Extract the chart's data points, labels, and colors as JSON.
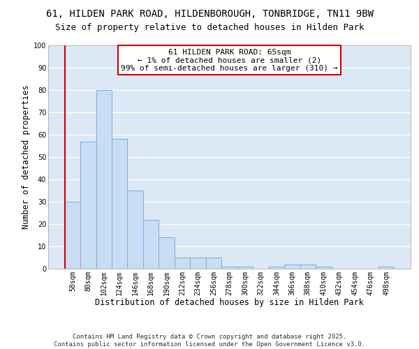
{
  "title_line1": "61, HILDEN PARK ROAD, HILDENBOROUGH, TONBRIDGE, TN11 9BW",
  "title_line2": "Size of property relative to detached houses in Hilden Park",
  "xlabel": "Distribution of detached houses by size in Hilden Park",
  "ylabel": "Number of detached properties",
  "categories": [
    "58sqm",
    "80sqm",
    "102sqm",
    "124sqm",
    "146sqm",
    "168sqm",
    "190sqm",
    "212sqm",
    "234sqm",
    "256sqm",
    "278sqm",
    "300sqm",
    "322sqm",
    "344sqm",
    "366sqm",
    "388sqm",
    "410sqm",
    "432sqm",
    "454sqm",
    "476sqm",
    "498sqm"
  ],
  "values": [
    30,
    57,
    80,
    58,
    35,
    22,
    14,
    5,
    5,
    5,
    1,
    1,
    0,
    1,
    2,
    2,
    1,
    0,
    0,
    0,
    1
  ],
  "bar_color": "#c9ddf2",
  "bar_edge_color": "#7aacdc",
  "annotation_text": "61 HILDEN PARK ROAD: 65sqm\n← 1% of detached houses are smaller (2)\n99% of semi-detached houses are larger (310) →",
  "annotation_box_color": "white",
  "annotation_box_edge_color": "#cc0000",
  "red_line_color": "#cc0000",
  "ylim": [
    0,
    100
  ],
  "yticks": [
    0,
    10,
    20,
    30,
    40,
    50,
    60,
    70,
    80,
    90,
    100
  ],
  "footnote": "Contains HM Land Registry data © Crown copyright and database right 2025.\nContains public sector information licensed under the Open Government Licence v3.0.",
  "background_color": "#dce8f5",
  "grid_color": "#ffffff",
  "title_fontsize": 10,
  "subtitle_fontsize": 9,
  "tick_fontsize": 7,
  "label_fontsize": 8.5,
  "annotation_fontsize": 8,
  "footnote_fontsize": 6.5
}
